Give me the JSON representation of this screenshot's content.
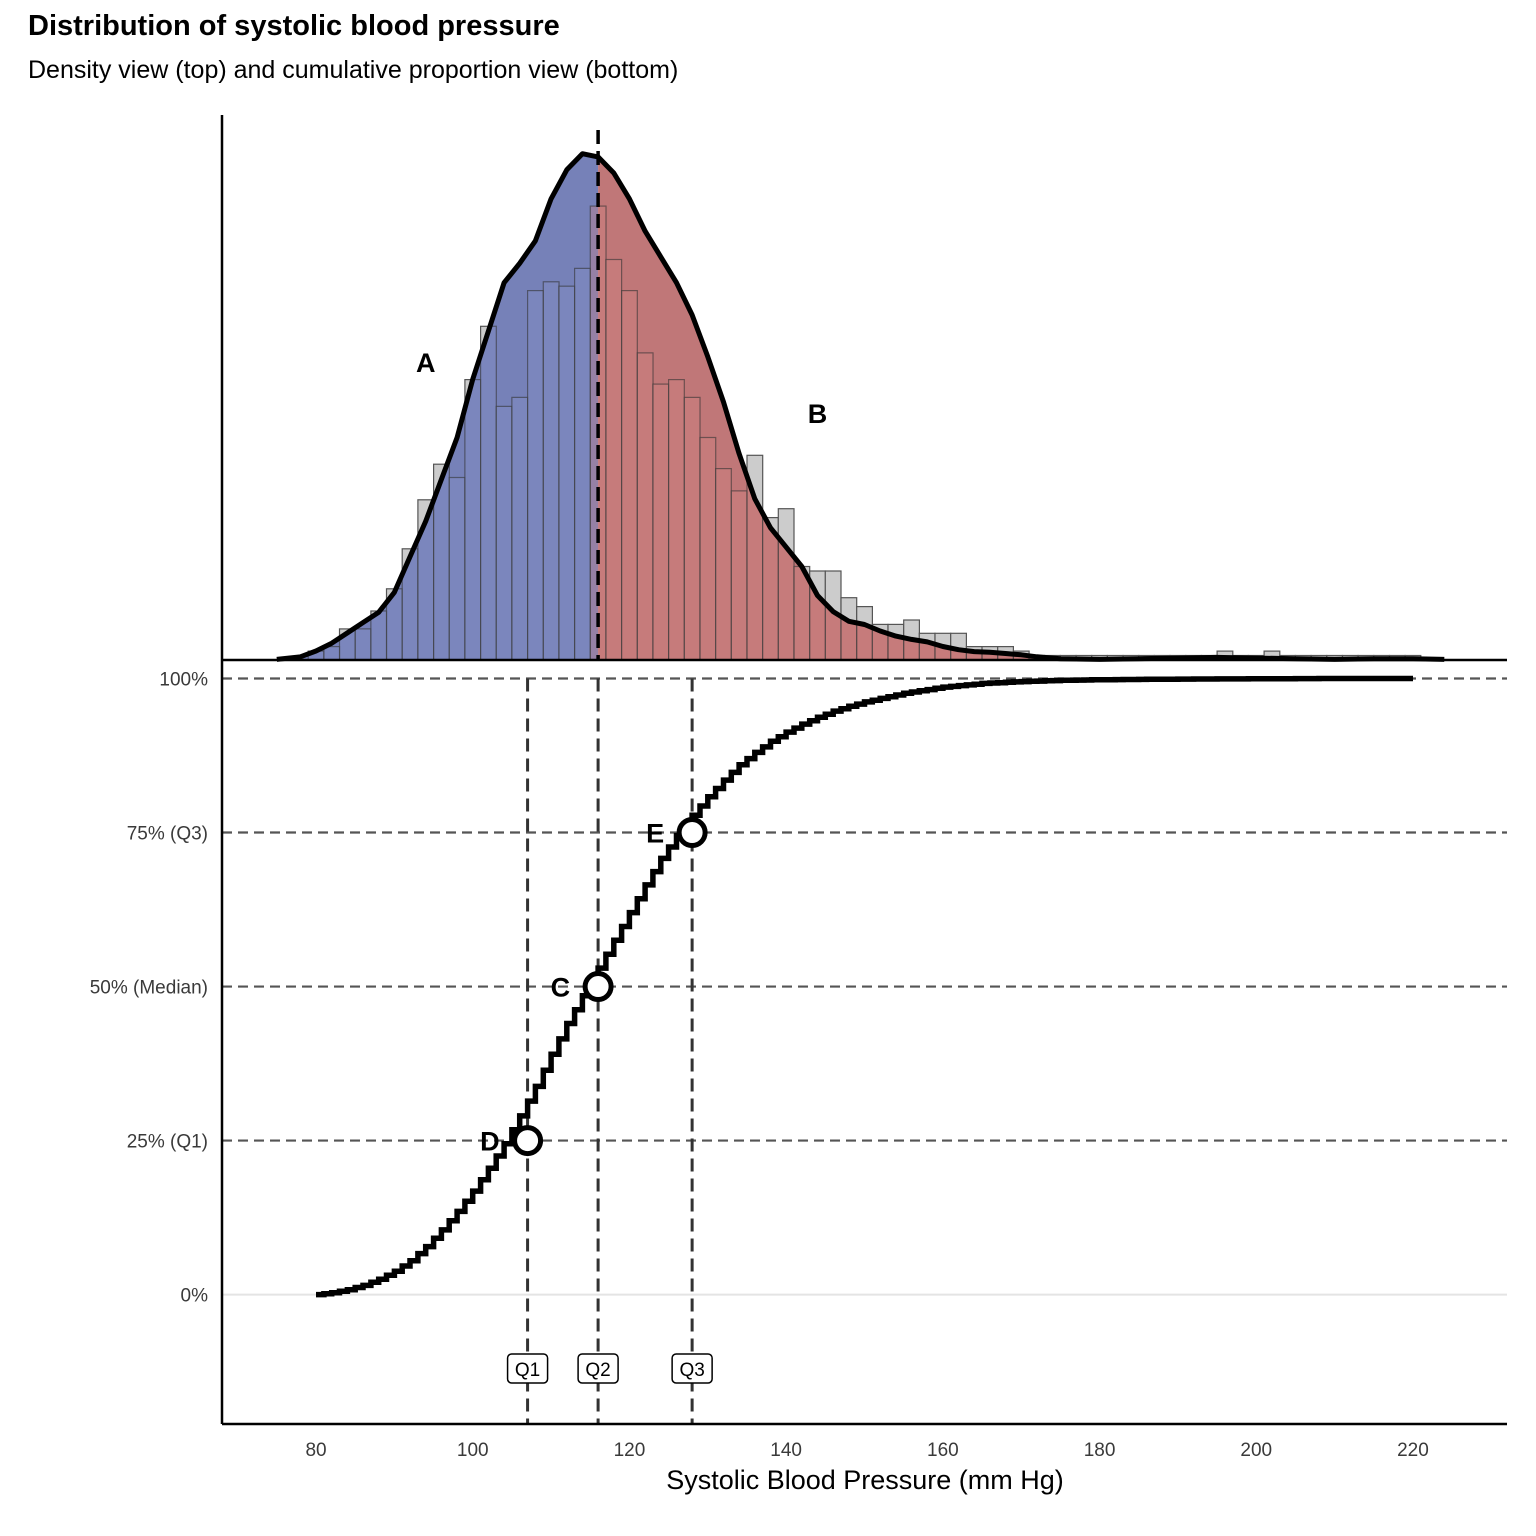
{
  "title": "Distribution of systolic blood pressure",
  "subtitle": "Density view (top) and cumulative proportion view (bottom)",
  "colors": {
    "below_median": "#6a76b2",
    "below_median_light": "#8d97cf",
    "above_median": "#bb6b6d",
    "above_median_light": "#d98a8a",
    "histogram": "#c9c9c9",
    "curve": "#000000",
    "guide": "#555555"
  },
  "chart_data": [
    {
      "type": "bar",
      "panel": "density",
      "bin_width": 2,
      "x": [
        80,
        82,
        84,
        86,
        88,
        90,
        92,
        94,
        96,
        98,
        100,
        102,
        104,
        106,
        108,
        110,
        112,
        114,
        116,
        118,
        120,
        122,
        124,
        126,
        128,
        130,
        132,
        134,
        136,
        138,
        140,
        142,
        144,
        146,
        148,
        150,
        152,
        154,
        156,
        158,
        160,
        162,
        164,
        166,
        168,
        170,
        172,
        174,
        176,
        178,
        180,
        182,
        184,
        186,
        188,
        190,
        192,
        194,
        196,
        198,
        200,
        202,
        204,
        206,
        208,
        210,
        212,
        214,
        216,
        218,
        220
      ],
      "values": [
        2,
        3,
        7,
        7,
        11,
        16,
        25,
        36,
        44,
        41,
        63,
        75,
        57,
        59,
        83,
        85,
        84,
        88,
        102,
        90,
        83,
        69,
        62,
        63,
        59,
        50,
        43,
        38,
        46,
        32,
        34,
        21,
        20,
        20,
        14,
        12,
        8,
        8,
        9,
        6,
        6,
        6,
        3,
        3,
        3,
        2,
        1,
        1,
        1,
        1,
        1,
        1,
        1,
        1,
        1,
        1,
        1,
        1,
        2,
        1,
        1,
        2,
        1,
        1,
        1,
        1,
        1,
        1,
        1,
        1,
        1
      ],
      "density_curve": {
        "x": [
          75,
          78,
          80,
          82,
          84,
          86,
          88,
          90,
          92,
          94,
          96,
          98,
          100,
          102,
          104,
          106,
          108,
          110,
          112,
          114,
          116,
          118,
          120,
          122,
          124,
          126,
          128,
          130,
          132,
          134,
          136,
          138,
          140,
          142,
          144,
          146,
          148,
          150,
          152,
          154,
          156,
          158,
          160,
          162,
          164,
          166,
          168,
          170,
          172,
          175,
          180,
          185,
          190,
          195,
          200,
          205,
          210,
          215,
          220,
          224
        ],
        "y": [
          0.1,
          0.5,
          1.4,
          2.6,
          4.2,
          5.8,
          7.4,
          10.5,
          16,
          21.5,
          28,
          34.5,
          43.5,
          51,
          58.5,
          61.5,
          65,
          71.5,
          76,
          78.5,
          78,
          75.5,
          71.5,
          66.5,
          62.5,
          58.5,
          53.5,
          47,
          40,
          32,
          25,
          20.5,
          17.5,
          14.5,
          10,
          7.5,
          6,
          5.5,
          4.5,
          3.7,
          3.2,
          2.8,
          2.1,
          1.6,
          1.3,
          1.2,
          1.0,
          0.8,
          0.5,
          0.2,
          0.1,
          0.2,
          0.3,
          0.4,
          0.3,
          0.2,
          0.1,
          0.2,
          0.2,
          0.1
        ]
      },
      "median_split": 116,
      "xlim": [
        68,
        232
      ],
      "labels": [
        {
          "text": "A",
          "x": 94,
          "y": 44
        },
        {
          "text": "B",
          "x": 144,
          "y": 36.5
        }
      ]
    },
    {
      "type": "line",
      "panel": "cumulative",
      "step": true,
      "x": [
        80,
        82,
        84,
        86,
        88,
        90,
        92,
        94,
        96,
        98,
        100,
        102,
        104,
        106,
        108,
        110,
        112,
        114,
        116,
        118,
        120,
        122,
        124,
        126,
        128,
        130,
        132,
        134,
        136,
        138,
        140,
        142,
        144,
        146,
        148,
        150,
        155,
        160,
        165,
        170,
        175,
        180,
        190,
        200,
        210,
        220
      ],
      "y": [
        0,
        0.003,
        0.008,
        0.015,
        0.025,
        0.038,
        0.055,
        0.078,
        0.105,
        0.135,
        0.168,
        0.205,
        0.245,
        0.29,
        0.338,
        0.39,
        0.44,
        0.485,
        0.53,
        0.575,
        0.62,
        0.665,
        0.708,
        0.745,
        0.778,
        0.808,
        0.835,
        0.86,
        0.88,
        0.898,
        0.913,
        0.926,
        0.937,
        0.947,
        0.955,
        0.962,
        0.976,
        0.986,
        0.992,
        0.995,
        0.997,
        0.998,
        0.999,
        0.9995,
        1,
        1
      ],
      "yticks": [
        {
          "value": 0,
          "label": "0%"
        },
        {
          "value": 0.25,
          "label": "25% (Q1)"
        },
        {
          "value": 0.5,
          "label": "50% (Median)"
        },
        {
          "value": 0.75,
          "label": "75% (Q3)"
        },
        {
          "value": 1,
          "label": "100%"
        }
      ],
      "quantiles": [
        {
          "name": "Q1",
          "x": 107,
          "y": 0.25,
          "point": "D"
        },
        {
          "name": "Q2",
          "x": 116,
          "y": 0.5,
          "point": "C"
        },
        {
          "name": "Q3",
          "x": 128,
          "y": 0.75,
          "point": "E"
        }
      ],
      "ylim": [
        -0.21,
        1.03
      ]
    }
  ],
  "x_axis": {
    "label": "Systolic Blood Pressure (mm Hg)",
    "ticks": [
      80,
      100,
      120,
      140,
      160,
      180,
      200,
      220
    ]
  }
}
